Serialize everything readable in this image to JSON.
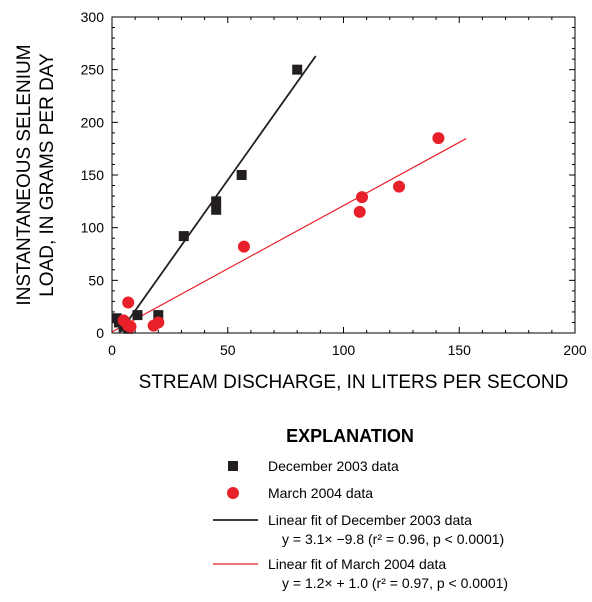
{
  "chart_data": {
    "type": "scatter",
    "xlabel": "STREAM DISCHARGE, IN LITERS PER SECOND",
    "ylabel_lines": [
      "INSTANTANEOUS SELENIUM",
      "LOAD, IN GRAMS PER DAY"
    ],
    "xlim": [
      0,
      200
    ],
    "ylim": [
      0,
      300
    ],
    "x_ticks": [
      0,
      50,
      100,
      150,
      200
    ],
    "y_ticks": [
      0,
      50,
      100,
      150,
      200,
      250,
      300
    ],
    "grid": false,
    "series": [
      {
        "name": "December 2003 data",
        "marker": "square",
        "color": "#231f20",
        "points": [
          [
            2,
            14
          ],
          [
            3,
            10
          ],
          [
            5,
            6
          ],
          [
            6,
            8
          ],
          [
            7,
            4
          ],
          [
            11,
            17
          ],
          [
            20,
            17
          ],
          [
            31,
            92
          ],
          [
            45,
            125
          ],
          [
            45,
            117
          ],
          [
            56,
            150
          ],
          [
            80,
            250
          ]
        ]
      },
      {
        "name": "March 2004 data",
        "marker": "circle",
        "color": "#e8202a",
        "points": [
          [
            5,
            12
          ],
          [
            7,
            29
          ],
          [
            7,
            7
          ],
          [
            8,
            6
          ],
          [
            18,
            7
          ],
          [
            20,
            10
          ],
          [
            57,
            82
          ],
          [
            107,
            115
          ],
          [
            108,
            129
          ],
          [
            124,
            139
          ],
          [
            141,
            185
          ]
        ]
      }
    ],
    "fits": [
      {
        "label": "Linear fit of December 2003 data",
        "equation": "y = 3.1× −9.8 (r² = 0.96, p < 0.0001)",
        "color": "#231f20",
        "x_range": [
          2,
          88
        ],
        "slope": 3.1,
        "intercept": -9.8
      },
      {
        "label": "Linear fit of March 2004 data",
        "equation": "y = 1.2× + 1.0 (r² = 0.97, p < 0.0001)",
        "color": "#e8202a",
        "x_range": [
          0,
          153
        ],
        "slope": 1.2,
        "intercept": 1.0
      }
    ],
    "legend": {
      "title": "EXPLANATION",
      "placement": "bottom"
    }
  }
}
